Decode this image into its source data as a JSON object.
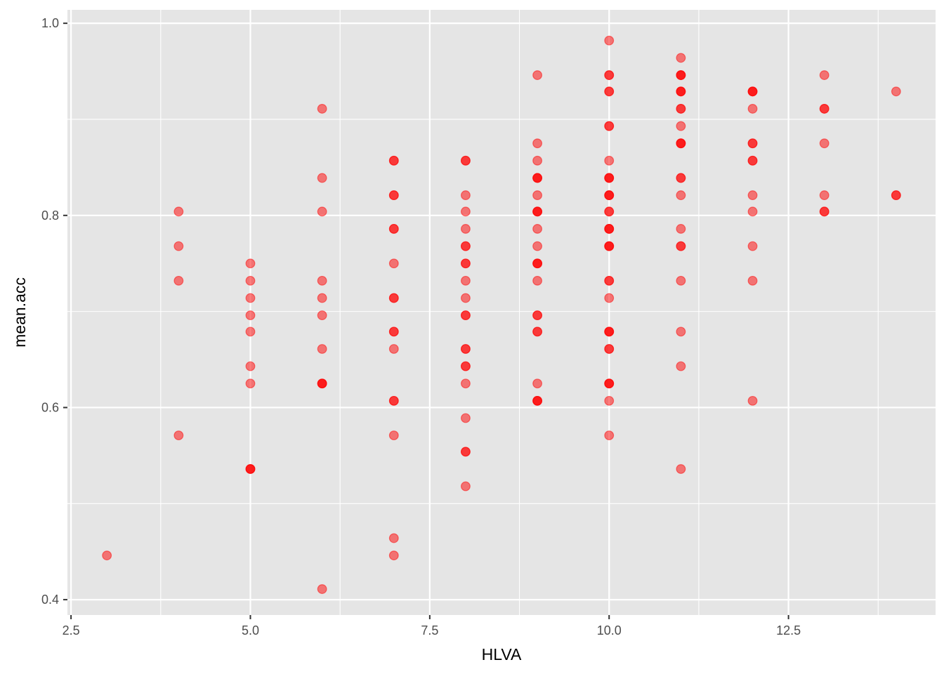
{
  "chart_data": {
    "type": "scatter",
    "title": "",
    "xlabel": "HLVA",
    "ylabel": "mean.acc",
    "xlim": [
      2.45,
      14.55
    ],
    "ylim": [
      0.384,
      1.014
    ],
    "x_ticks": [
      2.5,
      5.0,
      7.5,
      10.0,
      12.5
    ],
    "x_tick_labels": [
      "2.5",
      "5.0",
      "7.5",
      "10.0",
      "12.5"
    ],
    "y_ticks": [
      0.4,
      0.6,
      0.8,
      1.0
    ],
    "y_tick_labels": [
      "0.4",
      "0.6",
      "0.8",
      "1.0"
    ],
    "grid": true,
    "legend": "none",
    "colors": {
      "panel": "#e5e5e5",
      "grid": "#ffffff",
      "point": "#ff0000",
      "text": "#4d4d4d"
    },
    "point_alpha": 0.5,
    "points": [
      {
        "x": 3,
        "y": 0.446
      },
      {
        "x": 4,
        "y": 0.804
      },
      {
        "x": 4,
        "y": 0.768
      },
      {
        "x": 4,
        "y": 0.732
      },
      {
        "x": 4,
        "y": 0.571
      },
      {
        "x": 5,
        "y": 0.75
      },
      {
        "x": 5,
        "y": 0.732
      },
      {
        "x": 5,
        "y": 0.714
      },
      {
        "x": 5,
        "y": 0.696
      },
      {
        "x": 5,
        "y": 0.679
      },
      {
        "x": 5,
        "y": 0.643
      },
      {
        "x": 5,
        "y": 0.625
      },
      {
        "x": 5,
        "y": 0.536
      },
      {
        "x": 5,
        "y": 0.536
      },
      {
        "x": 5,
        "y": 0.536
      },
      {
        "x": 6,
        "y": 0.911
      },
      {
        "x": 6,
        "y": 0.839
      },
      {
        "x": 6,
        "y": 0.804
      },
      {
        "x": 6,
        "y": 0.732
      },
      {
        "x": 6,
        "y": 0.714
      },
      {
        "x": 6,
        "y": 0.696
      },
      {
        "x": 6,
        "y": 0.661
      },
      {
        "x": 6,
        "y": 0.625
      },
      {
        "x": 6,
        "y": 0.625
      },
      {
        "x": 6,
        "y": 0.625
      },
      {
        "x": 6,
        "y": 0.411
      },
      {
        "x": 7,
        "y": 0.857
      },
      {
        "x": 7,
        "y": 0.857
      },
      {
        "x": 7,
        "y": 0.821
      },
      {
        "x": 7,
        "y": 0.821
      },
      {
        "x": 7,
        "y": 0.786
      },
      {
        "x": 7,
        "y": 0.786
      },
      {
        "x": 7,
        "y": 0.75
      },
      {
        "x": 7,
        "y": 0.714
      },
      {
        "x": 7,
        "y": 0.714
      },
      {
        "x": 7,
        "y": 0.679
      },
      {
        "x": 7,
        "y": 0.679
      },
      {
        "x": 7,
        "y": 0.661
      },
      {
        "x": 7,
        "y": 0.607
      },
      {
        "x": 7,
        "y": 0.607
      },
      {
        "x": 7,
        "y": 0.571
      },
      {
        "x": 7,
        "y": 0.464
      },
      {
        "x": 7,
        "y": 0.446
      },
      {
        "x": 8,
        "y": 0.857
      },
      {
        "x": 8,
        "y": 0.857
      },
      {
        "x": 8,
        "y": 0.821
      },
      {
        "x": 8,
        "y": 0.804
      },
      {
        "x": 8,
        "y": 0.786
      },
      {
        "x": 8,
        "y": 0.768
      },
      {
        "x": 8,
        "y": 0.768
      },
      {
        "x": 8,
        "y": 0.75
      },
      {
        "x": 8,
        "y": 0.75
      },
      {
        "x": 8,
        "y": 0.732
      },
      {
        "x": 8,
        "y": 0.714
      },
      {
        "x": 8,
        "y": 0.696
      },
      {
        "x": 8,
        "y": 0.696
      },
      {
        "x": 8,
        "y": 0.661
      },
      {
        "x": 8,
        "y": 0.661
      },
      {
        "x": 8,
        "y": 0.643
      },
      {
        "x": 8,
        "y": 0.643
      },
      {
        "x": 8,
        "y": 0.625
      },
      {
        "x": 8,
        "y": 0.589
      },
      {
        "x": 8,
        "y": 0.554
      },
      {
        "x": 8,
        "y": 0.554
      },
      {
        "x": 8,
        "y": 0.518
      },
      {
        "x": 9,
        "y": 0.946
      },
      {
        "x": 9,
        "y": 0.875
      },
      {
        "x": 9,
        "y": 0.857
      },
      {
        "x": 9,
        "y": 0.839
      },
      {
        "x": 9,
        "y": 0.839
      },
      {
        "x": 9,
        "y": 0.839
      },
      {
        "x": 9,
        "y": 0.821
      },
      {
        "x": 9,
        "y": 0.804
      },
      {
        "x": 9,
        "y": 0.804
      },
      {
        "x": 9,
        "y": 0.804
      },
      {
        "x": 9,
        "y": 0.786
      },
      {
        "x": 9,
        "y": 0.768
      },
      {
        "x": 9,
        "y": 0.75
      },
      {
        "x": 9,
        "y": 0.75
      },
      {
        "x": 9,
        "y": 0.75
      },
      {
        "x": 9,
        "y": 0.732
      },
      {
        "x": 9,
        "y": 0.696
      },
      {
        "x": 9,
        "y": 0.696
      },
      {
        "x": 9,
        "y": 0.679
      },
      {
        "x": 9,
        "y": 0.679
      },
      {
        "x": 9,
        "y": 0.625
      },
      {
        "x": 9,
        "y": 0.607
      },
      {
        "x": 9,
        "y": 0.607
      },
      {
        "x": 9,
        "y": 0.607
      },
      {
        "x": 10,
        "y": 0.982
      },
      {
        "x": 10,
        "y": 0.946
      },
      {
        "x": 10,
        "y": 0.946
      },
      {
        "x": 10,
        "y": 0.929
      },
      {
        "x": 10,
        "y": 0.929
      },
      {
        "x": 10,
        "y": 0.893
      },
      {
        "x": 10,
        "y": 0.893
      },
      {
        "x": 10,
        "y": 0.857
      },
      {
        "x": 10,
        "y": 0.839
      },
      {
        "x": 10,
        "y": 0.839
      },
      {
        "x": 10,
        "y": 0.839
      },
      {
        "x": 10,
        "y": 0.821
      },
      {
        "x": 10,
        "y": 0.821
      },
      {
        "x": 10,
        "y": 0.821
      },
      {
        "x": 10,
        "y": 0.804
      },
      {
        "x": 10,
        "y": 0.804
      },
      {
        "x": 10,
        "y": 0.786
      },
      {
        "x": 10,
        "y": 0.786
      },
      {
        "x": 10,
        "y": 0.786
      },
      {
        "x": 10,
        "y": 0.768
      },
      {
        "x": 10,
        "y": 0.768
      },
      {
        "x": 10,
        "y": 0.768
      },
      {
        "x": 10,
        "y": 0.732
      },
      {
        "x": 10,
        "y": 0.732
      },
      {
        "x": 10,
        "y": 0.714
      },
      {
        "x": 10,
        "y": 0.679
      },
      {
        "x": 10,
        "y": 0.679
      },
      {
        "x": 10,
        "y": 0.679
      },
      {
        "x": 10,
        "y": 0.661
      },
      {
        "x": 10,
        "y": 0.661
      },
      {
        "x": 10,
        "y": 0.625
      },
      {
        "x": 10,
        "y": 0.625
      },
      {
        "x": 10,
        "y": 0.625
      },
      {
        "x": 10,
        "y": 0.607
      },
      {
        "x": 10,
        "y": 0.571
      },
      {
        "x": 11,
        "y": 0.964
      },
      {
        "x": 11,
        "y": 0.946
      },
      {
        "x": 11,
        "y": 0.946
      },
      {
        "x": 11,
        "y": 0.946
      },
      {
        "x": 11,
        "y": 0.929
      },
      {
        "x": 11,
        "y": 0.929
      },
      {
        "x": 11,
        "y": 0.929
      },
      {
        "x": 11,
        "y": 0.911
      },
      {
        "x": 11,
        "y": 0.911
      },
      {
        "x": 11,
        "y": 0.893
      },
      {
        "x": 11,
        "y": 0.875
      },
      {
        "x": 11,
        "y": 0.875
      },
      {
        "x": 11,
        "y": 0.875
      },
      {
        "x": 11,
        "y": 0.839
      },
      {
        "x": 11,
        "y": 0.839
      },
      {
        "x": 11,
        "y": 0.821
      },
      {
        "x": 11,
        "y": 0.786
      },
      {
        "x": 11,
        "y": 0.768
      },
      {
        "x": 11,
        "y": 0.768
      },
      {
        "x": 11,
        "y": 0.732
      },
      {
        "x": 11,
        "y": 0.679
      },
      {
        "x": 11,
        "y": 0.643
      },
      {
        "x": 11,
        "y": 0.536
      },
      {
        "x": 12,
        "y": 0.929
      },
      {
        "x": 12,
        "y": 0.929
      },
      {
        "x": 12,
        "y": 0.929
      },
      {
        "x": 12,
        "y": 0.911
      },
      {
        "x": 12,
        "y": 0.875
      },
      {
        "x": 12,
        "y": 0.875
      },
      {
        "x": 12,
        "y": 0.857
      },
      {
        "x": 12,
        "y": 0.857
      },
      {
        "x": 12,
        "y": 0.821
      },
      {
        "x": 12,
        "y": 0.804
      },
      {
        "x": 12,
        "y": 0.768
      },
      {
        "x": 12,
        "y": 0.732
      },
      {
        "x": 12,
        "y": 0.607
      },
      {
        "x": 13,
        "y": 0.946
      },
      {
        "x": 13,
        "y": 0.911
      },
      {
        "x": 13,
        "y": 0.911
      },
      {
        "x": 13,
        "y": 0.875
      },
      {
        "x": 13,
        "y": 0.821
      },
      {
        "x": 13,
        "y": 0.804
      },
      {
        "x": 13,
        "y": 0.804
      },
      {
        "x": 14,
        "y": 0.929
      },
      {
        "x": 14,
        "y": 0.821
      },
      {
        "x": 14,
        "y": 0.821
      }
    ]
  }
}
